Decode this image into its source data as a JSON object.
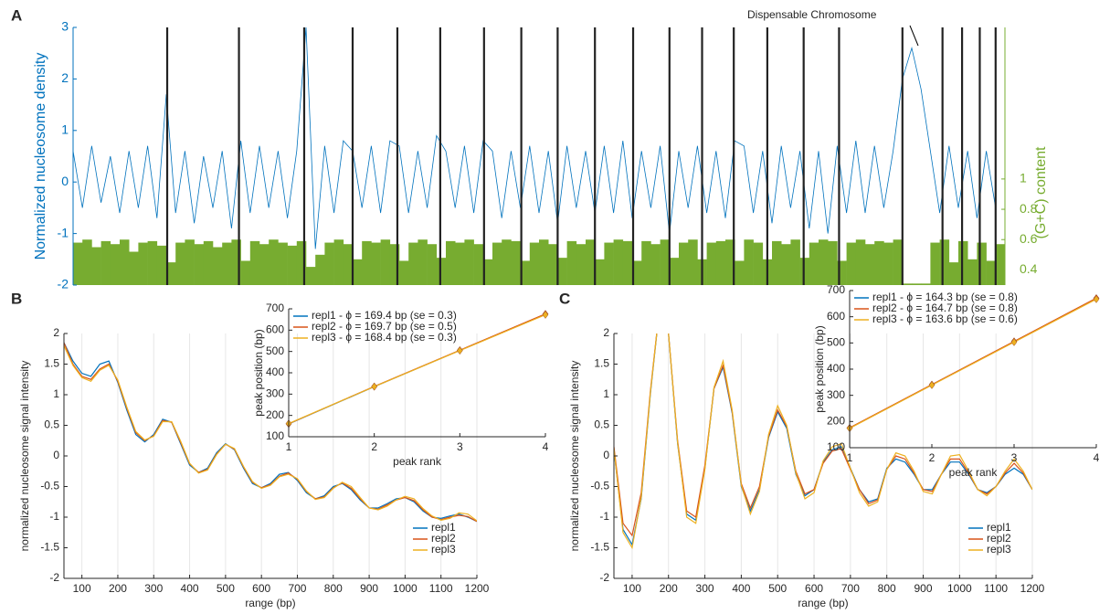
{
  "chart_data": [
    {
      "type": "line",
      "panel": "A",
      "ylabel": "Normalized nucleosome density",
      "y2label": "(G+C) content",
      "annotation": "Dispensable Chromosome",
      "axis_color": "#0072bd",
      "axis2_color": "#77ac30",
      "xlim": [
        0,
        100
      ],
      "ylim": [
        -2,
        3
      ],
      "yticks": [
        -2,
        -1,
        0,
        1,
        2,
        3
      ],
      "y2lim": [
        0.3,
        2.0
      ],
      "y2ticks": [
        0.4,
        0.6,
        0.8,
        1
      ],
      "boundaries": [
        10.1,
        17.8,
        24.8,
        30.0,
        34.8,
        39.4,
        44.1,
        48.1,
        52.0,
        56.0,
        60.1,
        64.0,
        67.5,
        70.9,
        74.5,
        78.4,
        82.2,
        89.0,
        93.3,
        95.4,
        97.3,
        99.0
      ],
      "boundary_color": "#222222",
      "x": [
        0,
        1,
        2,
        3,
        4,
        5,
        6,
        7,
        8,
        9,
        10,
        11,
        12,
        13,
        14,
        15,
        16,
        17,
        18,
        19,
        20,
        21,
        22,
        23,
        24,
        25,
        26,
        27,
        28,
        29,
        30,
        31,
        32,
        33,
        34,
        35,
        36,
        37,
        38,
        39,
        40,
        41,
        42,
        43,
        44,
        45,
        46,
        47,
        48,
        49,
        50,
        51,
        52,
        53,
        54,
        55,
        56,
        57,
        58,
        59,
        60,
        61,
        62,
        63,
        64,
        65,
        66,
        67,
        68,
        69,
        70,
        71,
        72,
        73,
        74,
        75,
        76,
        77,
        78,
        79,
        80,
        81,
        82,
        83,
        84,
        85,
        86,
        87,
        88,
        89,
        90,
        91,
        92,
        93,
        94,
        95,
        96,
        97,
        98,
        99
      ],
      "series": [
        {
          "color": "#0072bd",
          "values": [
            0.6,
            -0.5,
            0.7,
            -0.4,
            0.5,
            -0.6,
            0.6,
            -0.5,
            0.7,
            -0.7,
            1.7,
            -0.6,
            0.6,
            -0.8,
            0.5,
            -0.5,
            0.6,
            -0.9,
            0.8,
            -0.6,
            0.7,
            -0.5,
            0.6,
            -0.7,
            0.6,
            3.0,
            -1.3,
            0.7,
            -0.6,
            0.8,
            0.6,
            -0.5,
            0.7,
            -0.6,
            0.8,
            0.7,
            -0.6,
            0.6,
            -0.5,
            0.9,
            0.6,
            -0.5,
            0.7,
            -0.6,
            0.8,
            0.6,
            -0.7,
            0.6,
            -0.5,
            0.7,
            -0.6,
            0.6,
            -0.8,
            0.7,
            -0.5,
            0.6,
            -0.6,
            0.7,
            -0.6,
            0.8,
            -0.7,
            0.6,
            -0.5,
            0.7,
            -1.0,
            0.6,
            -0.5,
            0.7,
            -0.6,
            0.6,
            -0.7,
            0.8,
            0.7,
            -0.6,
            0.6,
            -0.8,
            0.7,
            -0.5,
            0.6,
            -0.9,
            0.6,
            -1.0,
            0.7,
            -0.6,
            0.8,
            -0.6,
            0.7,
            -0.5,
            0.6,
            2.0,
            2.6,
            1.8,
            0.6,
            -0.6,
            0.7,
            -0.5,
            0.6,
            -0.7,
            0.6,
            -0.5
          ]
        },
        {
          "color": "#77ac30",
          "axis": "y2",
          "values": [
            0.58,
            0.6,
            0.55,
            0.59,
            0.57,
            0.6,
            0.52,
            0.58,
            0.59,
            0.56,
            0.45,
            0.58,
            0.6,
            0.57,
            0.59,
            0.55,
            0.58,
            0.6,
            0.46,
            0.59,
            0.57,
            0.6,
            0.58,
            0.56,
            0.59,
            0.42,
            0.5,
            0.58,
            0.6,
            0.57,
            0.47,
            0.59,
            0.58,
            0.6,
            0.57,
            0.46,
            0.58,
            0.6,
            0.57,
            0.48,
            0.59,
            0.58,
            0.6,
            0.57,
            0.47,
            0.58,
            0.6,
            0.59,
            0.46,
            0.58,
            0.6,
            0.57,
            0.48,
            0.59,
            0.57,
            0.6,
            0.47,
            0.58,
            0.6,
            0.59,
            0.46,
            0.59,
            0.57,
            0.6,
            0.48,
            0.58,
            0.6,
            0.47,
            0.58,
            0.59,
            0.6,
            0.46,
            0.6,
            0.58,
            0.47,
            0.59,
            0.57,
            0.6,
            0.48,
            0.58,
            0.6,
            0.59,
            0.46,
            0.58,
            0.6,
            0.57,
            0.59,
            0.58,
            0.6,
            0.31,
            0.31,
            0.31,
            0.58,
            0.6,
            0.45,
            0.59,
            0.47,
            0.58,
            0.46,
            0.57
          ]
        }
      ]
    },
    {
      "type": "line",
      "panel": "B",
      "ylabel": "normalized nucleosome signal intensity",
      "xlabel": "range (bp)",
      "xgrid": true,
      "legend": "lower right",
      "xlim": [
        50,
        1200
      ],
      "xticks": [
        100,
        200,
        300,
        400,
        500,
        600,
        700,
        800,
        900,
        1000,
        1100,
        1200
      ],
      "ylim": [
        -2,
        2
      ],
      "yticks": [
        -2,
        -1.5,
        -1,
        -0.5,
        0,
        0.5,
        1,
        1.5,
        2
      ],
      "x": [
        50,
        75,
        100,
        125,
        150,
        175,
        200,
        225,
        250,
        275,
        300,
        325,
        350,
        375,
        400,
        425,
        450,
        475,
        500,
        525,
        550,
        575,
        600,
        625,
        650,
        675,
        700,
        725,
        750,
        775,
        800,
        825,
        850,
        875,
        900,
        925,
        950,
        975,
        1000,
        1025,
        1050,
        1075,
        1100,
        1125,
        1150,
        1175,
        1200
      ],
      "series": [
        {
          "name": "repl1",
          "color": "#0072bd",
          "values": [
            1.85,
            1.55,
            1.35,
            1.3,
            1.5,
            1.55,
            1.2,
            0.75,
            0.35,
            0.23,
            0.35,
            0.6,
            0.55,
            0.2,
            -0.15,
            -0.27,
            -0.2,
            0.05,
            0.2,
            0.1,
            -0.2,
            -0.45,
            -0.52,
            -0.45,
            -0.3,
            -0.27,
            -0.4,
            -0.6,
            -0.7,
            -0.65,
            -0.5,
            -0.45,
            -0.55,
            -0.72,
            -0.85,
            -0.85,
            -0.78,
            -0.7,
            -0.68,
            -0.75,
            -0.9,
            -1.0,
            -1.02,
            -0.98,
            -0.95,
            -1.0,
            -1.07
          ]
        },
        {
          "name": "repl2",
          "color": "#d95319",
          "values": [
            1.85,
            1.5,
            1.3,
            1.25,
            1.42,
            1.5,
            1.22,
            0.78,
            0.38,
            0.25,
            0.33,
            0.58,
            0.55,
            0.22,
            -0.13,
            -0.27,
            -0.22,
            0.03,
            0.19,
            0.11,
            -0.18,
            -0.43,
            -0.52,
            -0.47,
            -0.33,
            -0.28,
            -0.38,
            -0.58,
            -0.7,
            -0.67,
            -0.52,
            -0.44,
            -0.53,
            -0.7,
            -0.85,
            -0.87,
            -0.8,
            -0.72,
            -0.68,
            -0.73,
            -0.88,
            -1.0,
            -1.04,
            -1.0,
            -0.97,
            -0.99,
            -1.07
          ]
        },
        {
          "name": "repl3",
          "color": "#edb120",
          "values": [
            1.8,
            1.48,
            1.28,
            1.22,
            1.4,
            1.48,
            1.24,
            0.8,
            0.4,
            0.26,
            0.32,
            0.56,
            0.56,
            0.24,
            -0.12,
            -0.28,
            -0.23,
            0.02,
            0.19,
            0.12,
            -0.17,
            -0.42,
            -0.53,
            -0.48,
            -0.34,
            -0.3,
            -0.37,
            -0.57,
            -0.71,
            -0.68,
            -0.53,
            -0.43,
            -0.5,
            -0.68,
            -0.85,
            -0.88,
            -0.82,
            -0.72,
            -0.66,
            -0.7,
            -0.86,
            -0.98,
            -1.05,
            -1.02,
            -0.93,
            -0.95,
            -1.06
          ]
        }
      ]
    },
    {
      "type": "line",
      "xlabel": "peak rank",
      "ylabel": "peak position (bp)",
      "marker": "diamond",
      "legend": "upper left",
      "xlim": [
        1,
        4
      ],
      "xticks": [
        1,
        2,
        3,
        4
      ],
      "ylim": [
        100,
        700
      ],
      "yticks": [
        100,
        200,
        300,
        400,
        500,
        600,
        700
      ],
      "x": [
        1,
        2,
        3,
        4
      ],
      "series": [
        {
          "name": "repl1 - ϕ = 169.4 bp (se = 0.3)",
          "color": "#0072bd",
          "values": [
            160,
            335,
            505,
            675
          ]
        },
        {
          "name": "repl2 - ϕ = 169.7 bp (se = 0.5)",
          "color": "#d95319",
          "values": [
            161,
            336,
            506,
            676
          ]
        },
        {
          "name": "repl3 - ϕ = 168.4 bp (se = 0.3)",
          "color": "#edb120",
          "values": [
            162,
            335,
            504,
            672
          ]
        }
      ]
    },
    {
      "type": "line",
      "panel": "C",
      "ylabel": "normalized nucleosome signal intensity",
      "xlabel": "range (bp)",
      "xgrid": true,
      "legend": "lower right",
      "xlim": [
        50,
        1200
      ],
      "xticks": [
        100,
        200,
        300,
        400,
        500,
        600,
        700,
        800,
        900,
        1000,
        1100,
        1200
      ],
      "ylim": [
        -2,
        2
      ],
      "yticks": [
        -2,
        -1.5,
        -1,
        -0.5,
        0,
        0.5,
        1,
        1.5,
        2
      ],
      "x": [
        50,
        75,
        100,
        125,
        150,
        175,
        200,
        225,
        250,
        275,
        300,
        325,
        350,
        375,
        400,
        425,
        450,
        475,
        500,
        525,
        550,
        575,
        600,
        625,
        650,
        675,
        700,
        725,
        750,
        775,
        800,
        825,
        850,
        875,
        900,
        925,
        950,
        975,
        1000,
        1025,
        1050,
        1075,
        1100,
        1125,
        1150,
        1175,
        1200
      ],
      "series": [
        {
          "name": "repl1",
          "color": "#0072bd",
          "values": [
            0.1,
            -1.2,
            -1.45,
            -0.7,
            1.0,
            2.4,
            2.0,
            0.2,
            -0.95,
            -1.05,
            -0.2,
            1.1,
            1.45,
            0.7,
            -0.5,
            -0.9,
            -0.55,
            0.3,
            0.72,
            0.45,
            -0.3,
            -0.65,
            -0.55,
            -0.1,
            0.1,
            0.15,
            -0.2,
            -0.55,
            -0.75,
            -0.7,
            -0.2,
            -0.05,
            -0.1,
            -0.3,
            -0.55,
            -0.55,
            -0.3,
            -0.1,
            -0.1,
            -0.3,
            -0.55,
            -0.6,
            -0.5,
            -0.3,
            -0.2,
            -0.3,
            -0.55
          ]
        },
        {
          "name": "repl2",
          "color": "#d95319",
          "values": [
            0.15,
            -1.1,
            -1.3,
            -0.6,
            1.05,
            2.4,
            2.0,
            0.25,
            -0.9,
            -1.0,
            -0.15,
            1.1,
            1.48,
            0.72,
            -0.45,
            -0.85,
            -0.5,
            0.32,
            0.75,
            0.48,
            -0.25,
            -0.62,
            -0.55,
            -0.12,
            0.08,
            0.12,
            -0.22,
            -0.55,
            -0.78,
            -0.72,
            -0.22,
            0.0,
            -0.05,
            -0.28,
            -0.55,
            -0.58,
            -0.3,
            -0.05,
            -0.05,
            -0.28,
            -0.55,
            -0.62,
            -0.5,
            -0.28,
            -0.12,
            -0.28,
            -0.55
          ]
        },
        {
          "name": "repl3",
          "color": "#edb120",
          "values": [
            0.12,
            -1.25,
            -1.5,
            -0.68,
            1.02,
            2.4,
            2.0,
            0.22,
            -1.0,
            -1.1,
            -0.22,
            1.12,
            1.55,
            0.75,
            -0.48,
            -0.95,
            -0.58,
            0.35,
            0.82,
            0.5,
            -0.28,
            -0.7,
            -0.6,
            -0.08,
            0.15,
            0.2,
            -0.2,
            -0.6,
            -0.82,
            -0.75,
            -0.22,
            0.05,
            0.0,
            -0.25,
            -0.58,
            -0.62,
            -0.3,
            0.0,
            0.02,
            -0.25,
            -0.55,
            -0.65,
            -0.5,
            -0.25,
            -0.05,
            -0.25,
            -0.55
          ]
        }
      ]
    },
    {
      "type": "line",
      "xlabel": "peak rank",
      "ylabel": "peak position (bp)",
      "marker": "diamond",
      "legend": "upper left",
      "xlim": [
        1,
        4
      ],
      "xticks": [
        1,
        2,
        3,
        4
      ],
      "ylim": [
        100,
        700
      ],
      "yticks": [
        100,
        200,
        300,
        400,
        500,
        600,
        700
      ],
      "x": [
        1,
        2,
        3,
        4
      ],
      "series": [
        {
          "name": "repl1 - ϕ = 164.3 bp (se = 0.8)",
          "color": "#0072bd",
          "values": [
            175,
            340,
            505,
            670
          ]
        },
        {
          "name": "repl2 - ϕ = 164.7 bp (se = 0.8)",
          "color": "#d95319",
          "values": [
            176,
            341,
            506,
            671
          ]
        },
        {
          "name": "repl3 - ϕ = 163.6 bp (se = 0.6)",
          "color": "#edb120",
          "values": [
            174,
            339,
            503,
            667
          ]
        }
      ]
    }
  ]
}
